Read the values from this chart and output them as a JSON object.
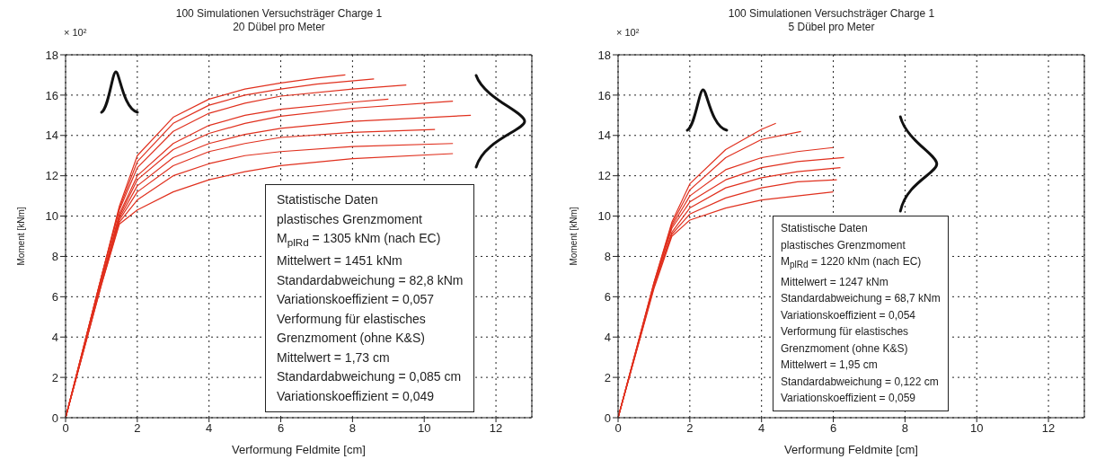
{
  "chart_data": [
    {
      "type": "line",
      "title": "100 Simulationen Versuchsträger Charge 1",
      "subtitle": "20 Dübel pro Meter",
      "xlabel": "Verformung Feldmite [cm]",
      "ylabel": "Moment [kNm]",
      "xlim": [
        0,
        13
      ],
      "xticks": [
        0,
        2,
        4,
        6,
        8,
        10,
        12
      ],
      "ylim": [
        0,
        18
      ],
      "yticks": [
        0,
        2,
        4,
        6,
        8,
        10,
        12,
        14,
        16,
        18
      ],
      "grid": true,
      "annotations": [
        "× 10²",
        "Statistische Daten",
        "plastisches Grenzmoment",
        "M$_{plRd}$ = 1305 kNm (nach EC)",
        "Mittelwert = 1451 kNm",
        "Standardabweichung = 82,8 kNm",
        "Variationskoeffizient = 0,057",
        "Verformung für elastisches",
        "Grenzmoment (ohne K&S)",
        "Mittelwert = 1,73 cm",
        "Standardabweichung = 0,085 cm",
        "Variationskoeffizient = 0,049"
      ],
      "series": [
        {
          "color": "#e0301e",
          "x": [
            0,
            1,
            1.5,
            2,
            3,
            4,
            5,
            6,
            7,
            7.8
          ],
          "values": [
            0,
            7,
            10.5,
            13,
            14.9,
            15.8,
            16.3,
            16.6,
            16.85,
            17
          ]
        },
        {
          "color": "#e0301e",
          "x": [
            0,
            1,
            1.5,
            2,
            3,
            4,
            5,
            6,
            7,
            8.6
          ],
          "values": [
            0,
            7,
            10.4,
            12.7,
            14.6,
            15.5,
            16,
            16.3,
            16.55,
            16.8
          ]
        },
        {
          "color": "#e0301e",
          "x": [
            0,
            1,
            1.5,
            2,
            3,
            4,
            5,
            6,
            8,
            9.5
          ],
          "values": [
            0,
            7,
            10.3,
            12.4,
            14.2,
            15.1,
            15.6,
            15.95,
            16.3,
            16.5
          ]
        },
        {
          "color": "#e0301e",
          "x": [
            0,
            1,
            1.5,
            2,
            3,
            4,
            5,
            6,
            8,
            9
          ],
          "values": [
            0,
            6.8,
            10.1,
            12,
            13.6,
            14.5,
            15,
            15.3,
            15.65,
            15.8
          ]
        },
        {
          "color": "#e0301e",
          "x": [
            0,
            1,
            1.5,
            2,
            3,
            4,
            5,
            6,
            8,
            10.8
          ],
          "values": [
            0,
            6.8,
            10,
            11.8,
            13.3,
            14.1,
            14.6,
            14.95,
            15.35,
            15.7
          ]
        },
        {
          "color": "#e0301e",
          "x": [
            0,
            1,
            1.5,
            2,
            3,
            4,
            5,
            6,
            8,
            11.3
          ],
          "values": [
            0,
            6.7,
            9.9,
            11.5,
            12.9,
            13.6,
            14.05,
            14.35,
            14.7,
            15
          ]
        },
        {
          "color": "#e0301e",
          "x": [
            0,
            1,
            1.5,
            2,
            3,
            4,
            5,
            6,
            8,
            10.3
          ],
          "values": [
            0,
            6.7,
            9.8,
            11.2,
            12.5,
            13.2,
            13.6,
            13.9,
            14.15,
            14.3
          ]
        },
        {
          "color": "#e0301e",
          "x": [
            0,
            1,
            1.5,
            2,
            3,
            4,
            5,
            6,
            8,
            10.8
          ],
          "values": [
            0,
            6.6,
            9.7,
            10.8,
            12,
            12.6,
            13,
            13.2,
            13.45,
            13.6
          ]
        },
        {
          "color": "#e0301e",
          "x": [
            0,
            1,
            1.5,
            2,
            3,
            4,
            5,
            6,
            8,
            10.8
          ],
          "values": [
            0,
            6.6,
            9.6,
            10.3,
            11.2,
            11.8,
            12.2,
            12.5,
            12.85,
            13.1
          ]
        }
      ]
    },
    {
      "type": "line",
      "title": "100 Simulationen Versuchsträger Charge 1",
      "subtitle": "5 Dübel pro Meter",
      "xlabel": "Verformung Feldmite [cm]",
      "ylabel": "Moment [kNm]",
      "xlim": [
        0,
        13
      ],
      "xticks": [
        0,
        2,
        4,
        6,
        8,
        10,
        12
      ],
      "ylim": [
        0,
        18
      ],
      "yticks": [
        0,
        2,
        4,
        6,
        8,
        10,
        12,
        14,
        16,
        18
      ],
      "grid": true,
      "annotations": [
        "× 10²",
        "Statistische Daten",
        "plastisches Grenzmoment",
        "M$_{plRd}$ = 1220 kNm (nach EC)",
        "Mittelwert = 1247 kNm",
        "Standardabweichung = 68,7 kNm",
        "Variationskoeffizient = 0,054",
        "Verformung für elastisches",
        "Grenzmoment (ohne K&S)",
        "Mittelwert = 1,95 cm",
        "Standardabweichung = 0,122 cm",
        "Variationskoeffizient = 0,059"
      ],
      "series": [
        {
          "color": "#e0301e",
          "x": [
            0,
            1,
            1.5,
            2,
            3,
            4,
            4.4
          ],
          "values": [
            0,
            6.7,
            9.7,
            11.6,
            13.3,
            14.3,
            14.6
          ]
        },
        {
          "color": "#e0301e",
          "x": [
            0,
            1,
            1.5,
            2,
            3,
            4,
            5.1
          ],
          "values": [
            0,
            6.7,
            9.6,
            11.3,
            12.9,
            13.8,
            14.2
          ]
        },
        {
          "color": "#e0301e",
          "x": [
            0,
            1,
            1.5,
            2,
            3,
            4,
            5,
            6
          ],
          "values": [
            0,
            6.6,
            9.5,
            11,
            12.3,
            12.9,
            13.2,
            13.4
          ]
        },
        {
          "color": "#e0301e",
          "x": [
            0,
            1,
            1.5,
            2,
            3,
            4,
            5,
            6.3
          ],
          "values": [
            0,
            6.6,
            9.4,
            10.7,
            11.8,
            12.4,
            12.7,
            12.9
          ]
        },
        {
          "color": "#e0301e",
          "x": [
            0,
            1,
            1.5,
            2,
            3,
            4,
            5,
            6.2
          ],
          "values": [
            0,
            6.5,
            9.2,
            10.4,
            11.4,
            11.9,
            12.2,
            12.4
          ]
        },
        {
          "color": "#e0301e",
          "x": [
            0,
            1,
            1.5,
            2,
            3,
            4,
            5,
            6.1
          ],
          "values": [
            0,
            6.5,
            9.1,
            10.1,
            10.9,
            11.4,
            11.7,
            11.8
          ]
        },
        {
          "color": "#e0301e",
          "x": [
            0,
            1,
            1.5,
            2,
            3,
            4,
            5,
            6
          ],
          "values": [
            0,
            6.4,
            9,
            9.8,
            10.4,
            10.8,
            11,
            11.2
          ]
        }
      ]
    }
  ]
}
